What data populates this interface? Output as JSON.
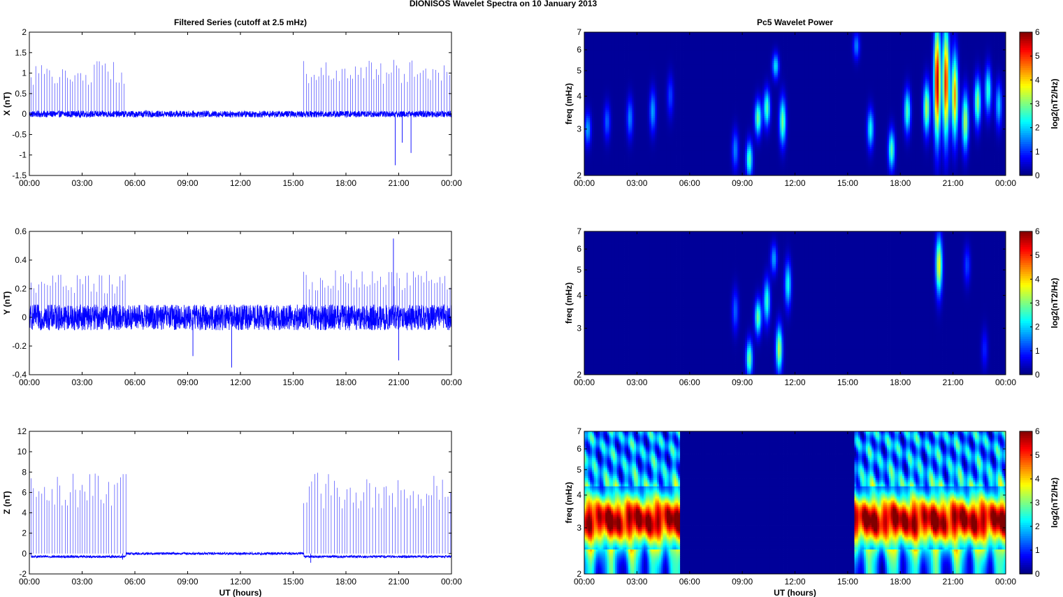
{
  "figure_title": "DIONISOS Wavelet Spectra on 10 January   2013",
  "colors": {
    "series": "#0000ff",
    "background_cmap_low": "#00008f",
    "axes": "#000000"
  },
  "chart_data": [
    {
      "type": "line",
      "title": "Filtered Series (cutoff at 2.5 mHz)",
      "xlabel": "",
      "ylabel": "X (nT)",
      "xlim": [
        0,
        24
      ],
      "ylim": [
        -1.5,
        2
      ],
      "yticks": [
        "-1.5",
        "-1",
        "-0.5",
        "0",
        "0.5",
        "1",
        "1.5",
        "2"
      ],
      "xticks": [
        "00:00",
        "03:00",
        "06:00",
        "09:00",
        "12:00",
        "15:00",
        "18:00",
        "21:00",
        "00:00"
      ],
      "series": [
        {
          "noise_amp": 0.08,
          "spike_segments": [
            [
              0.1,
              5.5,
              1.3
            ],
            [
              15.6,
              24.0,
              1.35
            ]
          ],
          "dips": [
            [
              20.8,
              -1.25
            ],
            [
              21.7,
              -0.95
            ],
            [
              21.2,
              -0.7
            ]
          ]
        }
      ]
    },
    {
      "type": "heatmap",
      "title": "Pc5 Wavelet Power",
      "xlabel": "",
      "ylabel": "freq (mHz)",
      "colorbar_label": "log2(nT2/Hz)",
      "xlim": [
        0,
        24
      ],
      "ylim": [
        2,
        7
      ],
      "yticks": [
        "2",
        "3",
        "4",
        "5",
        "6",
        "7"
      ],
      "xticks": [
        "00:00",
        "03:00",
        "06:00",
        "09:00",
        "12:00",
        "15:00",
        "18:00",
        "21:00",
        "00:00"
      ],
      "clim": [
        0,
        6
      ],
      "cticks": [
        "0",
        "1",
        "2",
        "3",
        "4",
        "5",
        "6"
      ],
      "features": [
        [
          0.2,
          3.0,
          0.3,
          1.6
        ],
        [
          1.3,
          3.2,
          0.35,
          1.2
        ],
        [
          2.6,
          3.3,
          0.4,
          1.4
        ],
        [
          3.9,
          3.5,
          0.45,
          1.6
        ],
        [
          4.9,
          4.0,
          0.5,
          1.0
        ],
        [
          8.6,
          2.5,
          0.3,
          1.4
        ],
        [
          9.4,
          2.3,
          0.25,
          2.6
        ],
        [
          9.9,
          3.3,
          0.35,
          2.8
        ],
        [
          10.4,
          3.6,
          0.4,
          2.6
        ],
        [
          10.9,
          5.2,
          0.4,
          2.0
        ],
        [
          11.3,
          3.2,
          0.45,
          2.8
        ],
        [
          15.5,
          6.2,
          0.5,
          1.4
        ],
        [
          16.3,
          3.0,
          0.35,
          2.2
        ],
        [
          17.5,
          2.5,
          0.3,
          2.6
        ],
        [
          18.4,
          3.5,
          0.45,
          2.6
        ],
        [
          19.5,
          3.6,
          0.55,
          3.2
        ],
        [
          20.1,
          4.5,
          1.5,
          5.6
        ],
        [
          20.6,
          4.5,
          1.5,
          5.0
        ],
        [
          21.1,
          4.0,
          1.0,
          4.2
        ],
        [
          21.7,
          3.2,
          0.55,
          3.2
        ],
        [
          22.4,
          3.8,
          0.55,
          3.0
        ],
        [
          23.0,
          4.2,
          0.6,
          2.4
        ],
        [
          23.6,
          3.7,
          0.5,
          1.8
        ]
      ]
    },
    {
      "type": "line",
      "title": "",
      "xlabel": "",
      "ylabel": "Y (nT)",
      "xlim": [
        0,
        24
      ],
      "ylim": [
        -0.4,
        0.6
      ],
      "yticks": [
        "-0.4",
        "-0.2",
        "0",
        "0.2",
        "0.4",
        "0.6"
      ],
      "xticks": [
        "00:00",
        "03:00",
        "06:00",
        "09:00",
        "12:00",
        "15:00",
        "18:00",
        "21:00",
        "00:00"
      ],
      "series": [
        {
          "noise_amp": 0.09,
          "spike_segments": [
            [
              0.1,
              5.5,
              0.3
            ],
            [
              15.6,
              24.0,
              0.33
            ]
          ],
          "dips": [
            [
              11.5,
              -0.35
            ],
            [
              21.0,
              -0.3
            ],
            [
              20.7,
              0.55
            ],
            [
              9.3,
              -0.27
            ]
          ]
        }
      ]
    },
    {
      "type": "heatmap",
      "title": "",
      "xlabel": "",
      "ylabel": "freq (mHz)",
      "colorbar_label": "log2(nT2/Hz)",
      "xlim": [
        0,
        24
      ],
      "ylim": [
        2,
        7
      ],
      "yticks": [
        "2",
        "3",
        "4",
        "5",
        "6",
        "7"
      ],
      "xticks": [
        "00:00",
        "03:00",
        "06:00",
        "09:00",
        "12:00",
        "15:00",
        "18:00",
        "21:00",
        "00:00"
      ],
      "clim": [
        0,
        6
      ],
      "cticks": [
        "0",
        "1",
        "2",
        "3",
        "4",
        "5",
        "6"
      ],
      "features": [
        [
          8.6,
          3.5,
          0.45,
          1.2
        ],
        [
          9.4,
          2.3,
          0.25,
          2.8
        ],
        [
          9.9,
          3.3,
          0.35,
          2.8
        ],
        [
          10.4,
          3.8,
          0.5,
          2.4
        ],
        [
          10.8,
          5.5,
          0.5,
          1.6
        ],
        [
          11.1,
          2.5,
          0.35,
          3.2
        ],
        [
          11.6,
          4.4,
          0.6,
          2.2
        ],
        [
          20.2,
          5.2,
          0.9,
          3.6
        ],
        [
          21.8,
          5.2,
          0.6,
          1.0
        ],
        [
          22.8,
          2.5,
          0.3,
          0.8
        ]
      ]
    },
    {
      "type": "line",
      "title": "",
      "xlabel": "UT (hours)",
      "ylabel": "Z (nT)",
      "xlim": [
        0,
        24
      ],
      "ylim": [
        -2,
        12
      ],
      "yticks": [
        "-2",
        "0",
        "2",
        "4",
        "6",
        "8",
        "10",
        "12"
      ],
      "xticks": [
        "00:00",
        "03:00",
        "06:00",
        "09:00",
        "12:00",
        "15:00",
        "18:00",
        "21:00",
        "00:00"
      ],
      "series": [
        {
          "noise_amp": 0.12,
          "spike_segments": [
            [
              0.1,
              5.5,
              8.0
            ],
            [
              15.6,
              24.0,
              8.0
            ]
          ],
          "dips": [
            [
              16.0,
              -0.9
            ],
            [
              5.3,
              -0.6
            ]
          ]
        }
      ]
    },
    {
      "type": "heatmap",
      "title": "",
      "xlabel": "UT (hours)",
      "ylabel": "freq (mHz)",
      "colorbar_label": "log2(nT2/Hz)",
      "xlim": [
        0,
        24
      ],
      "ylim": [
        2,
        7
      ],
      "yticks": [
        "2",
        "3",
        "4",
        "5",
        "6",
        "7"
      ],
      "xticks": [
        "00:00",
        "03:00",
        "06:00",
        "09:00",
        "12:00",
        "15:00",
        "18:00",
        "21:00",
        "00:00"
      ],
      "clim": [
        0,
        6
      ],
      "cticks": [
        "0",
        "1",
        "2",
        "3",
        "4",
        "5",
        "6"
      ],
      "active_windows": [
        [
          0.0,
          5.4,
          5.9
        ],
        [
          15.4,
          24.0,
          5.9
        ]
      ]
    }
  ]
}
